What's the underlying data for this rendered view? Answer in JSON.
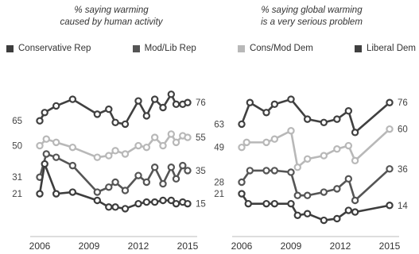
{
  "panels": [
    {
      "title_lines": [
        "% saying warming",
        "caused by human activity"
      ]
    },
    {
      "title_lines": [
        "% saying global warming",
        "is a very serious problem"
      ]
    }
  ],
  "legend": [
    {
      "label": "Conservative Rep",
      "color": "#3d3d3d"
    },
    {
      "label": "Mod/Lib Rep",
      "color": "#555555"
    },
    {
      "label": "Cons/Mod Dem",
      "color": "#b8b8b8"
    },
    {
      "label": "Liberal Dem",
      "color": "#404040"
    }
  ],
  "chart_data": [
    {
      "type": "line",
      "title": "% saying warming caused by human activity",
      "x_ticks": [
        2006,
        2009,
        2012,
        2015
      ],
      "xlim": [
        2006,
        2015
      ],
      "series": [
        {
          "name": "Liberal Dem",
          "color": "#404040",
          "points": [
            [
              2006,
              65
            ],
            [
              2006.3,
              70
            ],
            [
              2007,
              74
            ],
            [
              2008,
              78
            ],
            [
              2009.5,
              69
            ],
            [
              2010.2,
              72
            ],
            [
              2010.6,
              64
            ],
            [
              2011.2,
              63
            ],
            [
              2012,
              77
            ],
            [
              2012.5,
              68
            ],
            [
              2013,
              78
            ],
            [
              2013.5,
              73
            ],
            [
              2014,
              81
            ],
            [
              2014.3,
              75
            ],
            [
              2014.7,
              75
            ],
            [
              2015,
              76
            ]
          ],
          "start_label": "65",
          "end_label": "76"
        },
        {
          "name": "Cons/Mod Dem",
          "color": "#b8b8b8",
          "points": [
            [
              2006,
              50
            ],
            [
              2006.4,
              54
            ],
            [
              2007,
              52
            ],
            [
              2008,
              49
            ],
            [
              2009.5,
              43
            ],
            [
              2010.2,
              44
            ],
            [
              2010.6,
              47
            ],
            [
              2011.2,
              45
            ],
            [
              2012,
              50
            ],
            [
              2012.5,
              49
            ],
            [
              2013,
              55
            ],
            [
              2013.5,
              50
            ],
            [
              2014,
              57
            ],
            [
              2014.3,
              52
            ],
            [
              2014.7,
              56
            ],
            [
              2015,
              55
            ]
          ],
          "start_label": "50",
          "end_label": "55"
        },
        {
          "name": "Mod/Lib Rep",
          "color": "#555555",
          "points": [
            [
              2006,
              31
            ],
            [
              2006.4,
              45
            ],
            [
              2007,
              43
            ],
            [
              2008,
              38
            ],
            [
              2009.5,
              22
            ],
            [
              2010.2,
              25
            ],
            [
              2010.6,
              28
            ],
            [
              2011.2,
              23
            ],
            [
              2012,
              32
            ],
            [
              2012.5,
              28
            ],
            [
              2013,
              37
            ],
            [
              2013.5,
              27
            ],
            [
              2014,
              37
            ],
            [
              2014.3,
              30
            ],
            [
              2014.7,
              38
            ],
            [
              2015,
              35
            ]
          ],
          "start_label": "31",
          "end_label": "35"
        },
        {
          "name": "Conservative Rep",
          "color": "#3d3d3d",
          "points": [
            [
              2006,
              21
            ],
            [
              2006.3,
              39
            ],
            [
              2007,
              21
            ],
            [
              2008,
              22
            ],
            [
              2009.5,
              17
            ],
            [
              2010.2,
              13
            ],
            [
              2010.6,
              13
            ],
            [
              2011.2,
              12
            ],
            [
              2012,
              15
            ],
            [
              2012.5,
              16
            ],
            [
              2013,
              16
            ],
            [
              2013.5,
              17
            ],
            [
              2014,
              17
            ],
            [
              2014.3,
              15
            ],
            [
              2014.7,
              16
            ],
            [
              2015,
              15
            ]
          ],
          "start_label": "21",
          "end_label": "15"
        }
      ]
    },
    {
      "type": "line",
      "title": "% saying global warming is a very serious problem",
      "x_ticks": [
        2006,
        2009,
        2012,
        2015
      ],
      "xlim": [
        2006,
        2015
      ],
      "series": [
        {
          "name": "Liberal Dem",
          "color": "#404040",
          "points": [
            [
              2006,
              63
            ],
            [
              2006.5,
              76
            ],
            [
              2007.5,
              70
            ],
            [
              2008,
              75
            ],
            [
              2009,
              78
            ],
            [
              2010,
              66
            ],
            [
              2011,
              64
            ],
            [
              2011.8,
              66
            ],
            [
              2012.5,
              71
            ],
            [
              2012.9,
              58
            ],
            [
              2015,
              76
            ]
          ],
          "start_label": "63",
          "end_label": "76"
        },
        {
          "name": "Cons/Mod Dem",
          "color": "#b8b8b8",
          "points": [
            [
              2006,
              49
            ],
            [
              2006.3,
              52
            ],
            [
              2007.5,
              52
            ],
            [
              2008,
              54
            ],
            [
              2009,
              59
            ],
            [
              2009.4,
              37
            ],
            [
              2010,
              42
            ],
            [
              2011,
              44
            ],
            [
              2011.8,
              48
            ],
            [
              2012.5,
              50
            ],
            [
              2012.9,
              41
            ],
            [
              2015,
              60
            ]
          ],
          "start_label": "49",
          "end_label": "60"
        },
        {
          "name": "Mod/Lib Rep",
          "color": "#555555",
          "points": [
            [
              2006,
              28
            ],
            [
              2006.5,
              35
            ],
            [
              2007.5,
              35
            ],
            [
              2008,
              35
            ],
            [
              2009,
              34
            ],
            [
              2009.4,
              20
            ],
            [
              2010,
              20
            ],
            [
              2011,
              22
            ],
            [
              2011.8,
              24
            ],
            [
              2012.5,
              30
            ],
            [
              2012.9,
              17
            ],
            [
              2015,
              36
            ]
          ],
          "start_label": "28",
          "end_label": "36"
        },
        {
          "name": "Conservative Rep",
          "color": "#3d3d3d",
          "points": [
            [
              2006,
              21
            ],
            [
              2006.4,
              15
            ],
            [
              2007.5,
              15
            ],
            [
              2008,
              15
            ],
            [
              2009,
              15
            ],
            [
              2009.4,
              8
            ],
            [
              2010,
              9
            ],
            [
              2011,
              5
            ],
            [
              2011.8,
              6
            ],
            [
              2012.5,
              11
            ],
            [
              2012.9,
              10
            ],
            [
              2015,
              14
            ]
          ],
          "start_label": "21",
          "end_label": "14"
        }
      ]
    }
  ]
}
